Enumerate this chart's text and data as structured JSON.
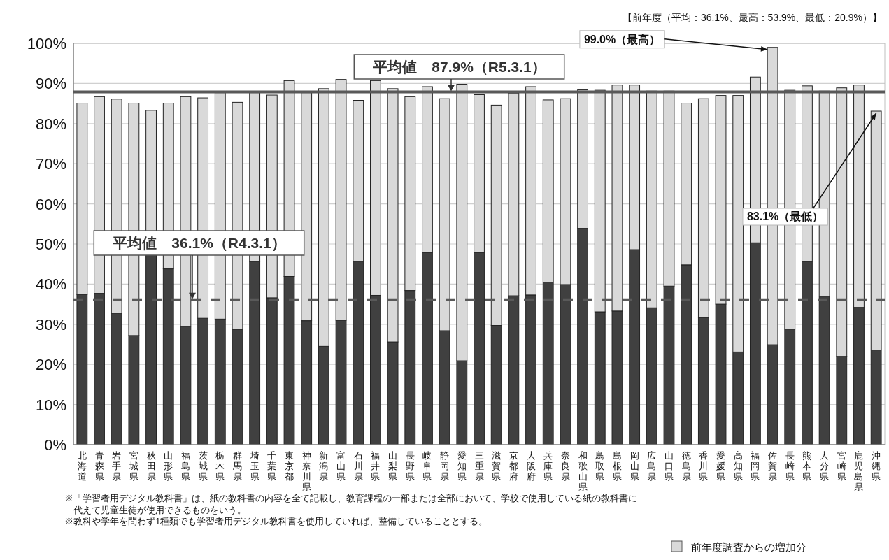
{
  "chart_data": {
    "type": "bar",
    "stacked": true,
    "subtitle": "【前年度（平均：36.1%、最高：53.9%、最低：20.9%）】",
    "categories": [
      "北海道",
      "青森県",
      "岩手県",
      "宮城県",
      "秋田県",
      "山形県",
      "福島県",
      "茨城県",
      "栃木県",
      "群馬県",
      "埼玉県",
      "千葉県",
      "東京都",
      "神奈川県",
      "新潟県",
      "富山県",
      "石川県",
      "福井県",
      "山梨県",
      "長野県",
      "岐阜県",
      "静岡県",
      "愛知県",
      "三重県",
      "滋賀県",
      "京都府",
      "大阪府",
      "兵庫県",
      "奈良県",
      "和歌山県",
      "鳥取県",
      "島根県",
      "岡山県",
      "広島県",
      "山口県",
      "徳島県",
      "香川県",
      "愛媛県",
      "高知県",
      "福岡県",
      "佐賀県",
      "長崎県",
      "熊本県",
      "大分県",
      "宮崎県",
      "鹿児島県",
      "沖縄県"
    ],
    "series": [
      {
        "color": "#404040",
        "values": [
          37.4,
          37.7,
          32.8,
          27.2,
          47.4,
          43.8,
          29.5,
          31.5,
          31.3,
          28.7,
          45.6,
          36.6,
          41.9,
          30.9,
          24.5,
          31.0,
          45.7,
          37.2,
          25.6,
          38.4,
          47.9,
          28.4,
          20.9,
          47.9,
          29.7,
          37.1,
          37.3,
          40.5,
          39.9,
          53.9,
          33.1,
          33.3,
          48.6,
          34.1,
          39.5,
          44.8,
          31.7,
          35.0,
          23.1,
          50.3,
          24.9,
          28.8,
          45.6,
          37.0,
          22.0,
          34.2,
          23.6
        ]
      },
      {
        "name": "前年度調査からの増加分",
        "color": "#d9d9d9",
        "values": [
          47.7,
          49.0,
          53.3,
          57.9,
          35.9,
          41.3,
          57.2,
          54.9,
          56.4,
          56.6,
          42.1,
          50.5,
          48.8,
          56.8,
          64.2,
          60.0,
          40.1,
          53.5,
          63.1,
          48.3,
          41.3,
          57.8,
          68.9,
          39.3,
          54.9,
          50.5,
          51.9,
          45.4,
          46.3,
          34.5,
          55.2,
          56.3,
          41.0,
          54.0,
          48.6,
          40.3,
          54.5,
          52.0,
          63.9,
          41.3,
          74.1,
          59.5,
          43.8,
          51.1,
          66.9,
          55.4,
          59.5
        ]
      }
    ],
    "ylim": [
      0,
      100
    ],
    "yticks": [
      {
        "value": 0,
        "label": "0%"
      },
      {
        "value": 10,
        "label": "10%"
      },
      {
        "value": 20,
        "label": "20%"
      },
      {
        "value": 30,
        "label": "30%"
      },
      {
        "value": 40,
        "label": "40%"
      },
      {
        "value": 50,
        "label": "50%"
      },
      {
        "value": 60,
        "label": "60%"
      },
      {
        "value": 70,
        "label": "70%"
      },
      {
        "value": 80,
        "label": "80%"
      },
      {
        "value": 90,
        "label": "90%"
      },
      {
        "value": 100,
        "label": "100%"
      }
    ],
    "grid": "y",
    "legend": "bottom right",
    "ref_lines": [
      {
        "axis": "y",
        "value": 87.9,
        "label": "平均値　87.9%（R5.3.1）",
        "color": "#595959",
        "line_style": "solid"
      },
      {
        "axis": "y",
        "value": 36.1,
        "label": "平均値　36.1%（R4.3.1）",
        "color": "#595959",
        "line_style": "dashed"
      }
    ],
    "annotations": [
      {
        "text": "99.0%（最高）",
        "x": "佐賀県",
        "y": 99.0
      },
      {
        "text": "83.1%（最低）",
        "x": "沖縄県",
        "y": 83.1
      },
      "※「学習者用デジタル教科書」は、紙の教科書の内容を全て記載し、教育課程の一部または全部において、学校で使用している紙の教科書に",
      "　代えて児童生徒が使用できるものをいう。",
      "※教科や学年を問わず1種類でも学習者用デジタル教科書を使用していれば、整備していることとする。"
    ]
  }
}
